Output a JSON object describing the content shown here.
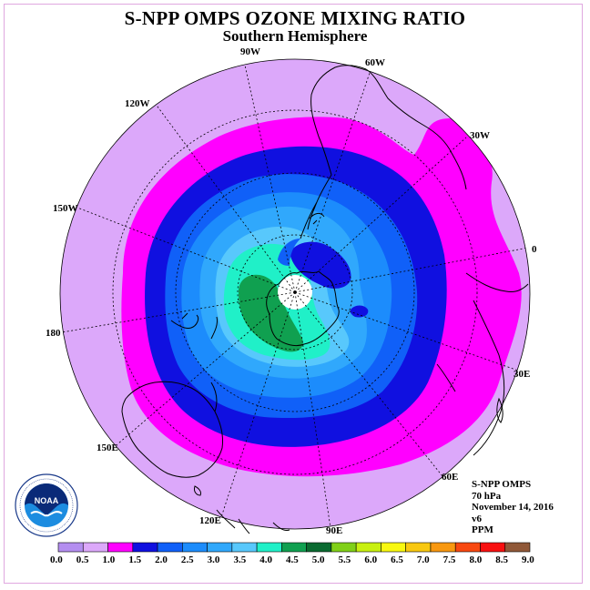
{
  "title": "S-NPP OMPS OZONE MIXING RATIO",
  "subtitle": "Southern Hemisphere",
  "longitude_labels": [
    "90W",
    "60W",
    "30W",
    "0",
    "30E",
    "60E",
    "90E",
    "120E",
    "150E",
    "180",
    "150W",
    "120W"
  ],
  "info": {
    "instrument": "S-NPP OMPS",
    "level": "70 hPa",
    "date": "November 14, 2016",
    "version": "v6",
    "units": "PPM"
  },
  "colorbar": {
    "ticks": [
      "0.0",
      "0.5",
      "1.0",
      "1.5",
      "2.0",
      "2.5",
      "3.0",
      "3.5",
      "4.0",
      "4.5",
      "5.0",
      "5.5",
      "6.0",
      "6.5",
      "7.0",
      "7.5",
      "8.0",
      "8.5",
      "9.0"
    ],
    "colors": [
      "#b48ef0",
      "#dca8fa",
      "#ff00ff",
      "#1010e0",
      "#1060f8",
      "#1c8cfc",
      "#30a8fc",
      "#58c8fc",
      "#20f0c8",
      "#10a050",
      "#0a6a30",
      "#80d018",
      "#c8f010",
      "#f8f810",
      "#f8c810",
      "#f89810",
      "#f84810",
      "#f81010",
      "#905838"
    ]
  },
  "logo": {
    "text": "NOAA",
    "ring_text": "NATIONAL OCEANIC AND ATMOSPHERIC ADMINISTRATION · U.S. DEPARTMENT OF COMMERCE"
  }
}
